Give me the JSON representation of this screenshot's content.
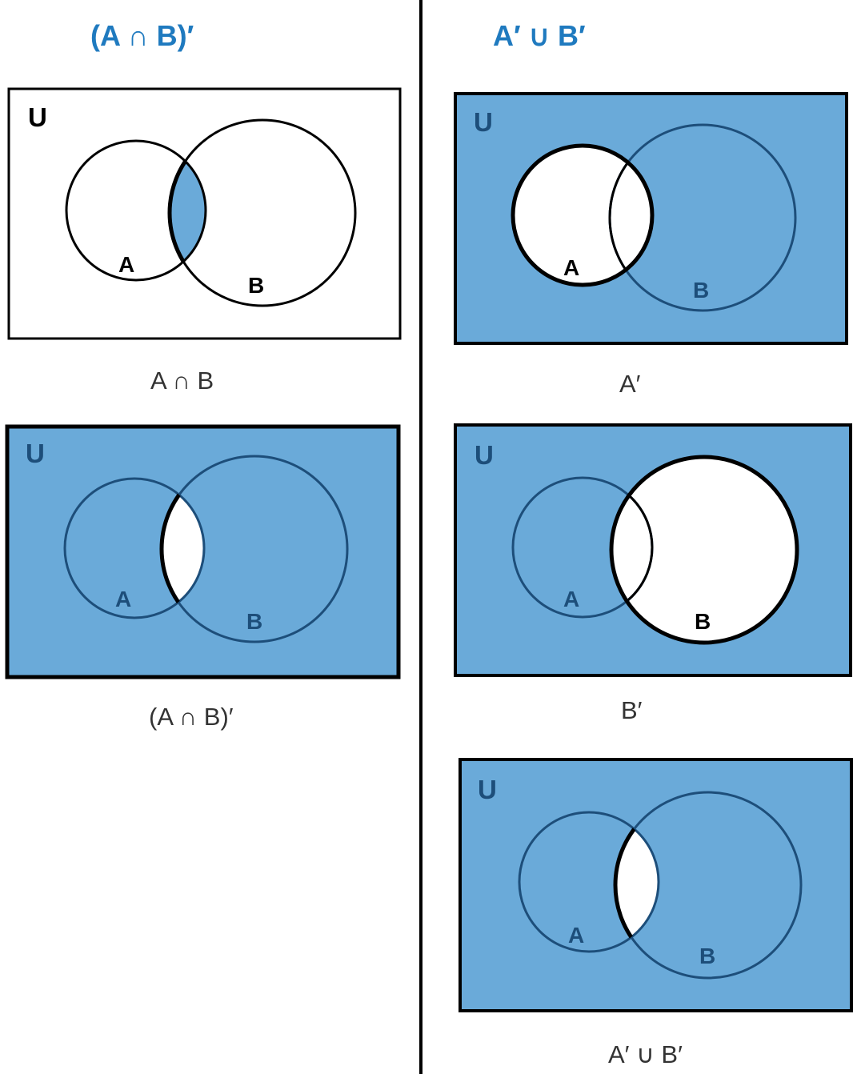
{
  "headings": {
    "left": "(A ∩ B)′",
    "right": "A′ ∪  B′"
  },
  "symbols": {
    "universe": "U",
    "set_a": "A",
    "set_b": "B"
  },
  "panels": [
    {
      "id": "intersection",
      "shaded_region": "A ∩ B",
      "caption": "A ∩ B"
    },
    {
      "id": "complement-of-intersection",
      "shaded_region": "everything except A ∩ B",
      "caption": "(A ∩ B)′"
    },
    {
      "id": "complement-a",
      "shaded_region": "everything except A",
      "caption": "A′"
    },
    {
      "id": "complement-b",
      "shaded_region": "everything except B",
      "caption": "B′"
    },
    {
      "id": "union-of-complements",
      "shaded_region": "everything except A ∩ B",
      "caption": "A′ ∪  B′"
    }
  ],
  "colors": {
    "fill": "#6aaad9",
    "heading": "#1f7abf",
    "outline": "#000000",
    "faint_outline": "#1d4e7a",
    "label_on_blue": "#1d4e7a"
  }
}
